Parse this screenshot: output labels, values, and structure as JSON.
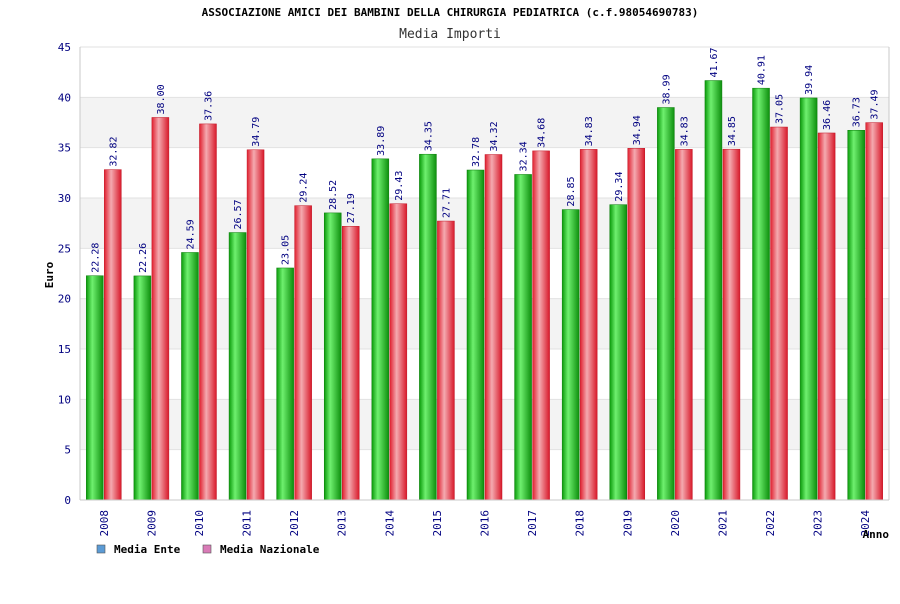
{
  "chart_data": {
    "type": "bar",
    "title": "ASSOCIAZIONE AMICI DEI BAMBINI DELLA CHIRURGIA PEDIATRICA (c.f.98054690783)",
    "subtitle": "Media Importi",
    "ylabel": "Euro",
    "xlabel": "Anno",
    "ylim": [
      0,
      45
    ],
    "yticks": [
      "0",
      "5",
      "10",
      "15",
      "20",
      "25",
      "30",
      "35",
      "40",
      "45"
    ],
    "grid": true,
    "legend_position": "bottom-left",
    "categories": [
      "2008",
      "2009",
      "2010",
      "2011",
      "2012",
      "2013",
      "2014",
      "2015",
      "2016",
      "2017",
      "2018",
      "2019",
      "2020",
      "2021",
      "2022",
      "2023",
      "2024"
    ],
    "series": [
      {
        "name": "Media Ente",
        "legend_color": "#5b9bd5",
        "bar_color": "#19b519",
        "values": [
          22.28,
          22.26,
          24.59,
          26.57,
          23.05,
          28.52,
          33.89,
          34.35,
          32.78,
          32.34,
          28.85,
          29.34,
          38.99,
          41.67,
          40.91,
          39.94,
          36.73
        ],
        "labels": [
          "22.28",
          "22.26",
          "24.59",
          "26.57",
          "23.05",
          "28.52",
          "33.89",
          "34.35",
          "32.78",
          "32.34",
          "28.85",
          "29.34",
          "38.99",
          "41.67",
          "40.91",
          "39.94",
          "36.73"
        ]
      },
      {
        "name": "Media Nazionale",
        "legend_color": "#d97bb7",
        "bar_color": "#e8404f",
        "values": [
          32.82,
          38.0,
          37.36,
          34.79,
          29.24,
          27.19,
          29.43,
          27.71,
          34.32,
          34.68,
          34.83,
          34.94,
          34.83,
          34.85,
          37.05,
          36.46,
          37.49
        ],
        "labels": [
          "32.82",
          "38.00",
          "37.36",
          "34.79",
          "29.24",
          "27.19",
          "29.43",
          "27.71",
          "34.32",
          "34.68",
          "34.83",
          "34.94",
          "34.83",
          "34.85",
          "37.05",
          "36.46",
          "37.49"
        ]
      }
    ]
  }
}
